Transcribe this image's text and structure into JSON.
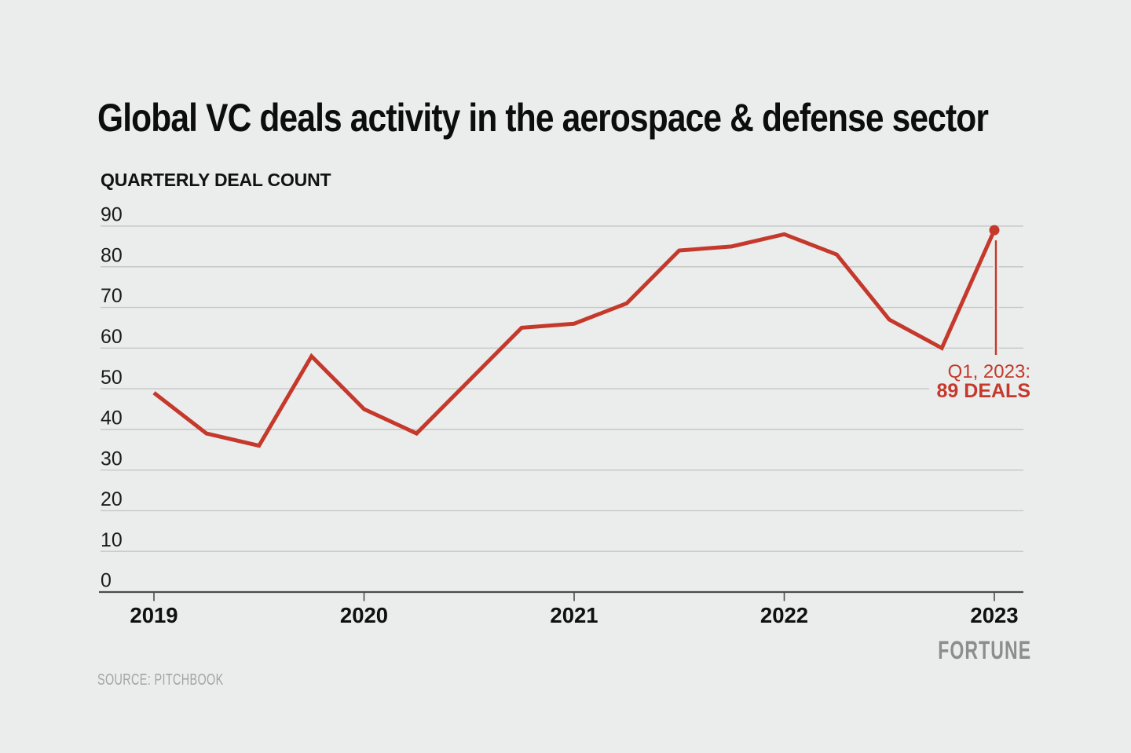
{
  "title": "Global VC deals activity in the aerospace & defense sector",
  "subtitle": "QUARTERLY DEAL COUNT",
  "annotation": {
    "line1": "Q1, 2023:",
    "line2": "89 DEALS"
  },
  "source": "SOURCE: PITCHBOOK",
  "brand": "FORTUNE",
  "colors": {
    "background": "#ebedec",
    "accent_red": "#c5392c",
    "gridline": "#c4c7c6",
    "axis": "#4b4d4c",
    "title_text": "#0d0d0d",
    "tick_label": "#1b1d1c",
    "source_text": "#a3a4a4",
    "brand_text": "#8c8d8d"
  },
  "chart_data": {
    "type": "line",
    "title": "Global VC deals activity in the aerospace & defense sector",
    "ylabel": "QUARTERLY DEAL COUNT",
    "categories": [
      "Q1 2019",
      "Q2 2019",
      "Q3 2019",
      "Q4 2019",
      "Q1 2020",
      "Q2 2020",
      "Q3 2020",
      "Q4 2020",
      "Q1 2021",
      "Q2 2021",
      "Q3 2021",
      "Q4 2021",
      "Q1 2022",
      "Q2 2022",
      "Q3 2022",
      "Q4 2022",
      "Q1 2023"
    ],
    "values": [
      49,
      39,
      36,
      58,
      45,
      39,
      52,
      65,
      66,
      71,
      84,
      85,
      88,
      83,
      67,
      60,
      89
    ],
    "x_ticks": [
      {
        "label": "2019",
        "index": 0
      },
      {
        "label": "2020",
        "index": 4
      },
      {
        "label": "2021",
        "index": 8
      },
      {
        "label": "2022",
        "index": 12
      },
      {
        "label": "2023",
        "index": 16
      }
    ],
    "yticks": [
      0,
      10,
      20,
      30,
      40,
      50,
      60,
      70,
      80,
      90
    ],
    "ylim": [
      0,
      90
    ],
    "grid": "horizontal",
    "legend": "none",
    "series_color": "#c5392c",
    "highlight_point": {
      "index": 16,
      "value": 89,
      "label": "Q1, 2023:",
      "value_label": "89 DEALS"
    }
  }
}
